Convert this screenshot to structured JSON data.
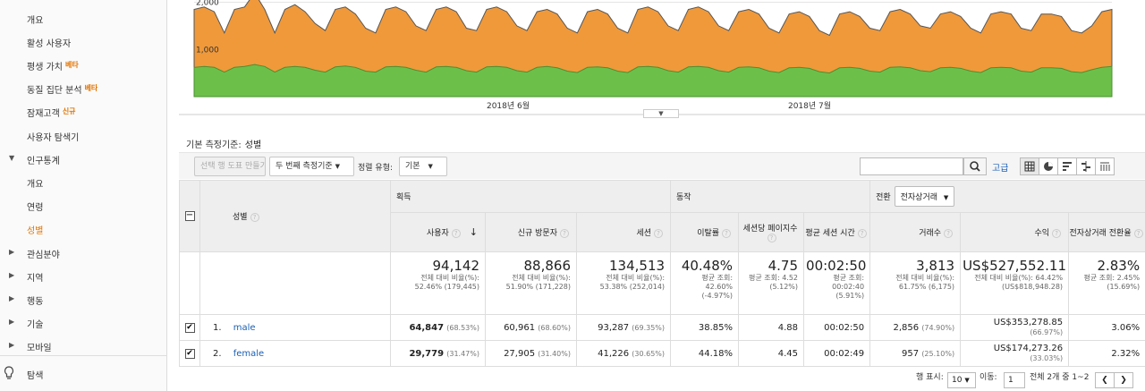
{
  "sidebar": {
    "items": [
      {
        "label": "개요",
        "badge": ""
      },
      {
        "label": "활성 사용자",
        "badge": ""
      },
      {
        "label": "평생 가치",
        "badge": "베타"
      },
      {
        "label": "동질 집단 분석",
        "badge": "베타"
      },
      {
        "label": "잠재고객",
        "badge": "신규"
      },
      {
        "label": "사용자 탐색기",
        "badge": ""
      }
    ],
    "demographics": {
      "label": "인구통계",
      "children": [
        "개요",
        "연령",
        "성별"
      ],
      "active": "성별"
    },
    "collapsed": [
      "관심분야",
      "지역",
      "행동",
      "기술",
      "모바일"
    ],
    "discover": "탐색"
  },
  "chart_data": {
    "type": "area",
    "x_labels": [
      "2018년 6월",
      "2018년 7월"
    ],
    "y_ticks": [
      "2,000",
      "1,000"
    ],
    "series": [
      {
        "name": "male",
        "color": "#f0993a",
        "values": [
          1850,
          1900,
          1800,
          1350,
          1850,
          1900,
          2200,
          1850,
          1350,
          1850,
          1950,
          1800,
          1550,
          1400,
          1850,
          1900,
          1750,
          1450,
          1350,
          1850,
          1900,
          1800,
          1500,
          1400,
          1850,
          1900,
          1800,
          1450,
          1400,
          1850,
          1900,
          1800,
          1500,
          1400,
          1800,
          1850,
          1750,
          1450,
          1350,
          1800,
          1850,
          1750,
          1450,
          1350,
          1850,
          1900,
          1800,
          1500,
          1400,
          1850,
          1900,
          1800,
          1500,
          1400,
          1800,
          1850,
          1750,
          1450,
          1350,
          1750,
          1800,
          1700,
          1400,
          1300,
          1750,
          1800,
          1700,
          1450,
          1400,
          1800,
          1850,
          1750,
          1500,
          1450,
          1750,
          1800,
          1700,
          1450,
          1350,
          1750,
          1800,
          1750,
          1450,
          1400,
          1750,
          1750,
          1700,
          1400,
          1350,
          1500,
          1800,
          1850
        ]
      },
      {
        "name": "female",
        "color": "#6cc04a",
        "values": [
          620,
          640,
          620,
          520,
          620,
          640,
          680,
          640,
          520,
          620,
          640,
          620,
          560,
          520,
          630,
          650,
          620,
          540,
          520,
          630,
          640,
          620,
          560,
          520,
          630,
          640,
          620,
          550,
          520,
          630,
          640,
          620,
          550,
          520,
          620,
          640,
          610,
          540,
          510,
          620,
          630,
          610,
          540,
          510,
          630,
          640,
          620,
          550,
          520,
          630,
          640,
          620,
          550,
          520,
          620,
          630,
          610,
          540,
          510,
          610,
          620,
          600,
          530,
          500,
          610,
          620,
          600,
          540,
          520,
          620,
          630,
          610,
          550,
          530,
          610,
          620,
          600,
          540,
          510,
          610,
          620,
          610,
          540,
          520,
          610,
          610,
          600,
          530,
          510,
          570,
          620,
          640
        ]
      }
    ],
    "ylim": [
      0,
      2200
    ],
    "grid": true
  },
  "primary_dimension": {
    "label": "기본 측정기준:",
    "value": "성별"
  },
  "toolbar": {
    "create_chart": "선택 행 도표 만들기",
    "secondary_dim": "두 번째 측정기준",
    "sort_label": "정렬 유형:",
    "sort_value": "기본",
    "search_placeholder": "",
    "advanced": "고급"
  },
  "table": {
    "dim_header": "성별",
    "groups": {
      "acquisition": "획득",
      "behavior": "동작",
      "conversion": "전환",
      "conversion_select": "전자상거래"
    },
    "columns": [
      "사용자",
      "신규 방문자",
      "세션",
      "이탈률",
      "세션당 페이지수",
      "평균 세션 시간",
      "거래수",
      "수익",
      "전자상거래 전환율"
    ],
    "totals": [
      {
        "value": "94,142",
        "sub": "전체 대비 비율(%): 52.46% (179,445)"
      },
      {
        "value": "88,866",
        "sub": "전체 대비 비율(%): 51.90% (171,228)"
      },
      {
        "value": "134,513",
        "sub": "전체 대비 비율(%): 53.38% (252,014)"
      },
      {
        "value": "40.48%",
        "sub": "평균 조회: 42.60% (-4.97%)"
      },
      {
        "value": "4.75",
        "sub": "평균 조회: 4.52 (5.12%)"
      },
      {
        "value": "00:02:50",
        "sub": "평균 조회: 00:02:40 (5.91%)"
      },
      {
        "value": "3,813",
        "sub": "전체 대비 비율(%): 61.75% (6,175)"
      },
      {
        "value": "US$527,552.11",
        "sub": "전체 대비 비율(%): 64.42% (US$818,948.28)"
      },
      {
        "value": "2.83%",
        "sub": "평균 조회: 2.45% (15.69%)"
      }
    ],
    "rows": [
      {
        "num": "1.",
        "name": "male",
        "users": "64,847",
        "users_pct": "(68.53%)",
        "new": "60,961",
        "new_pct": "(68.60%)",
        "sessions": "93,287",
        "sessions_pct": "(69.35%)",
        "bounce": "38.85%",
        "pps": "4.88",
        "dur": "00:02:50",
        "tx": "2,856",
        "tx_pct": "(74.90%)",
        "rev": "US$353,278.85",
        "rev_pct": "(66.97%)",
        "conv": "3.06%"
      },
      {
        "num": "2.",
        "name": "female",
        "users": "29,779",
        "users_pct": "(31.47%)",
        "new": "27,905",
        "new_pct": "(31.40%)",
        "sessions": "41,226",
        "sessions_pct": "(30.65%)",
        "bounce": "44.18%",
        "pps": "4.45",
        "dur": "00:02:49",
        "tx": "957",
        "tx_pct": "(25.10%)",
        "rev": "US$174,273.26",
        "rev_pct": "(33.03%)",
        "conv": "2.32%"
      }
    ]
  },
  "pager": {
    "rows_label": "행 표시:",
    "rows_value": "10",
    "goto_label": "이동:",
    "goto_value": "1",
    "range": "전체 2개 중 1~2"
  }
}
